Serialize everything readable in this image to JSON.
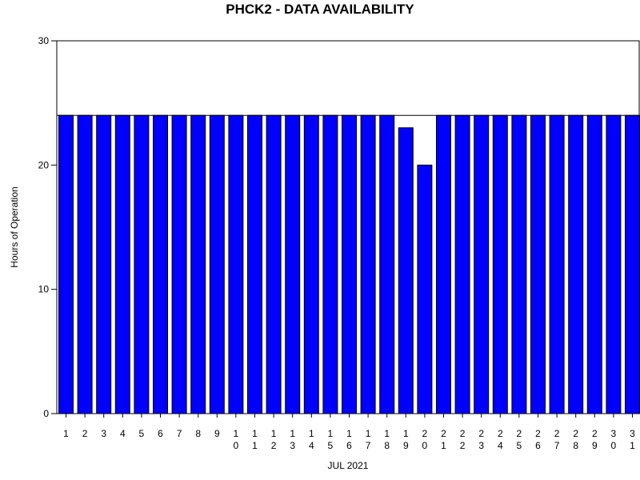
{
  "chart_data": {
    "type": "bar",
    "title": "PHCK2 - DATA AVAILABILITY",
    "xlabel": "JUL 2021",
    "ylabel": "Hours of Operation",
    "categories": [
      "1",
      "2",
      "3",
      "4",
      "5",
      "6",
      "7",
      "8",
      "9",
      "10",
      "11",
      "12",
      "13",
      "14",
      "15",
      "16",
      "17",
      "18",
      "19",
      "20",
      "21",
      "22",
      "23",
      "24",
      "25",
      "26",
      "27",
      "28",
      "29",
      "30",
      "31"
    ],
    "values": [
      24,
      24,
      24,
      24,
      24,
      24,
      24,
      24,
      24,
      24,
      24,
      24,
      24,
      24,
      24,
      24,
      24,
      24,
      23,
      20,
      24,
      24,
      24,
      24,
      24,
      24,
      24,
      24,
      24,
      24,
      24
    ],
    "reference_line": 24,
    "ylim": [
      0,
      30
    ],
    "yticks": [
      0,
      10,
      20,
      30
    ],
    "grid": false,
    "legend": "none",
    "bar_color": "#0000ff",
    "bar_edge_color": "#000000",
    "line_color": "#000000"
  }
}
